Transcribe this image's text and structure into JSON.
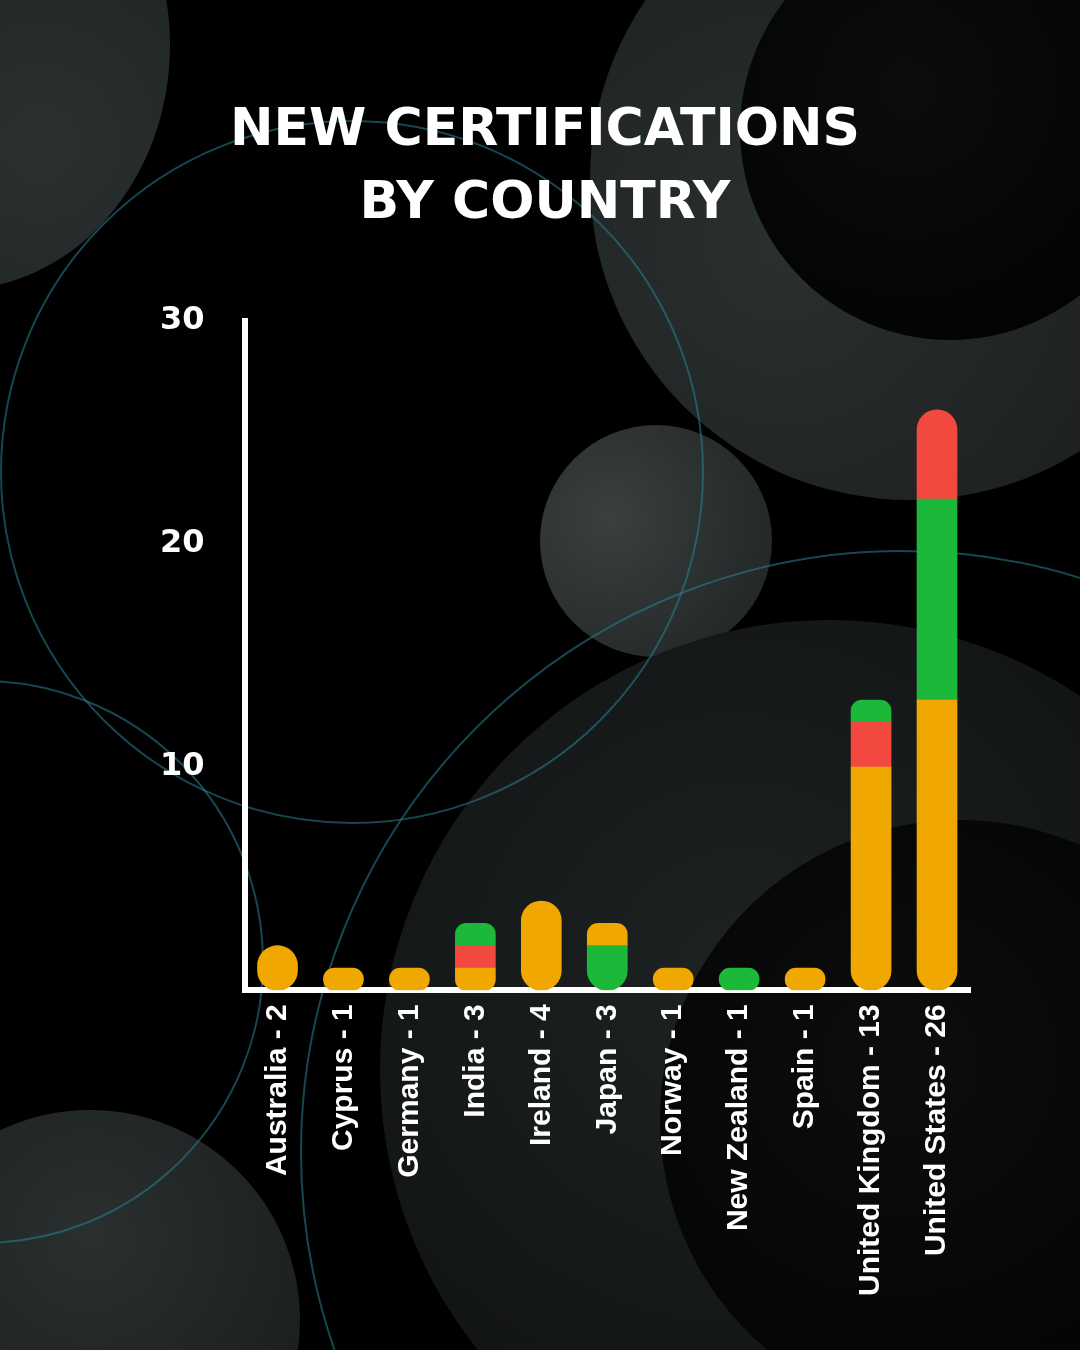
{
  "chart_data": {
    "type": "bar",
    "title": "NEW CERTIFICATIONS BY COUNTRY",
    "categories": [
      "Australia - 2",
      "Cyprus - 1",
      "Germany - 1",
      "India - 3",
      "Ireland - 4",
      "Japan - 3",
      "Norway - 1",
      "New Zealand - 1",
      "Spain - 1",
      "United Kingdom - 13",
      "United States - 26"
    ],
    "series": [
      {
        "color": "#1cb83a",
        "values": [
          null,
          null,
          null,
          null,
          null,
          2,
          null,
          1,
          null,
          null,
          null
        ]
      },
      {
        "color": "#f0a800",
        "values": [
          2,
          1,
          1,
          1,
          4,
          1,
          1,
          null,
          1,
          10,
          13
        ]
      },
      {
        "color": "#f2483f",
        "values": [
          null,
          null,
          null,
          1,
          null,
          null,
          null,
          null,
          null,
          2,
          null
        ]
      },
      {
        "color": "#1cb83a",
        "values": [
          null,
          null,
          null,
          1,
          null,
          null,
          null,
          null,
          null,
          1,
          9
        ]
      },
      {
        "color": "#f2483f",
        "values": [
          null,
          null,
          null,
          null,
          null,
          null,
          null,
          null,
          null,
          null,
          4
        ]
      }
    ],
    "stacked": true,
    "ylim": [
      0,
      30
    ],
    "yticks": [
      10,
      20,
      30
    ],
    "grid": false
  }
}
